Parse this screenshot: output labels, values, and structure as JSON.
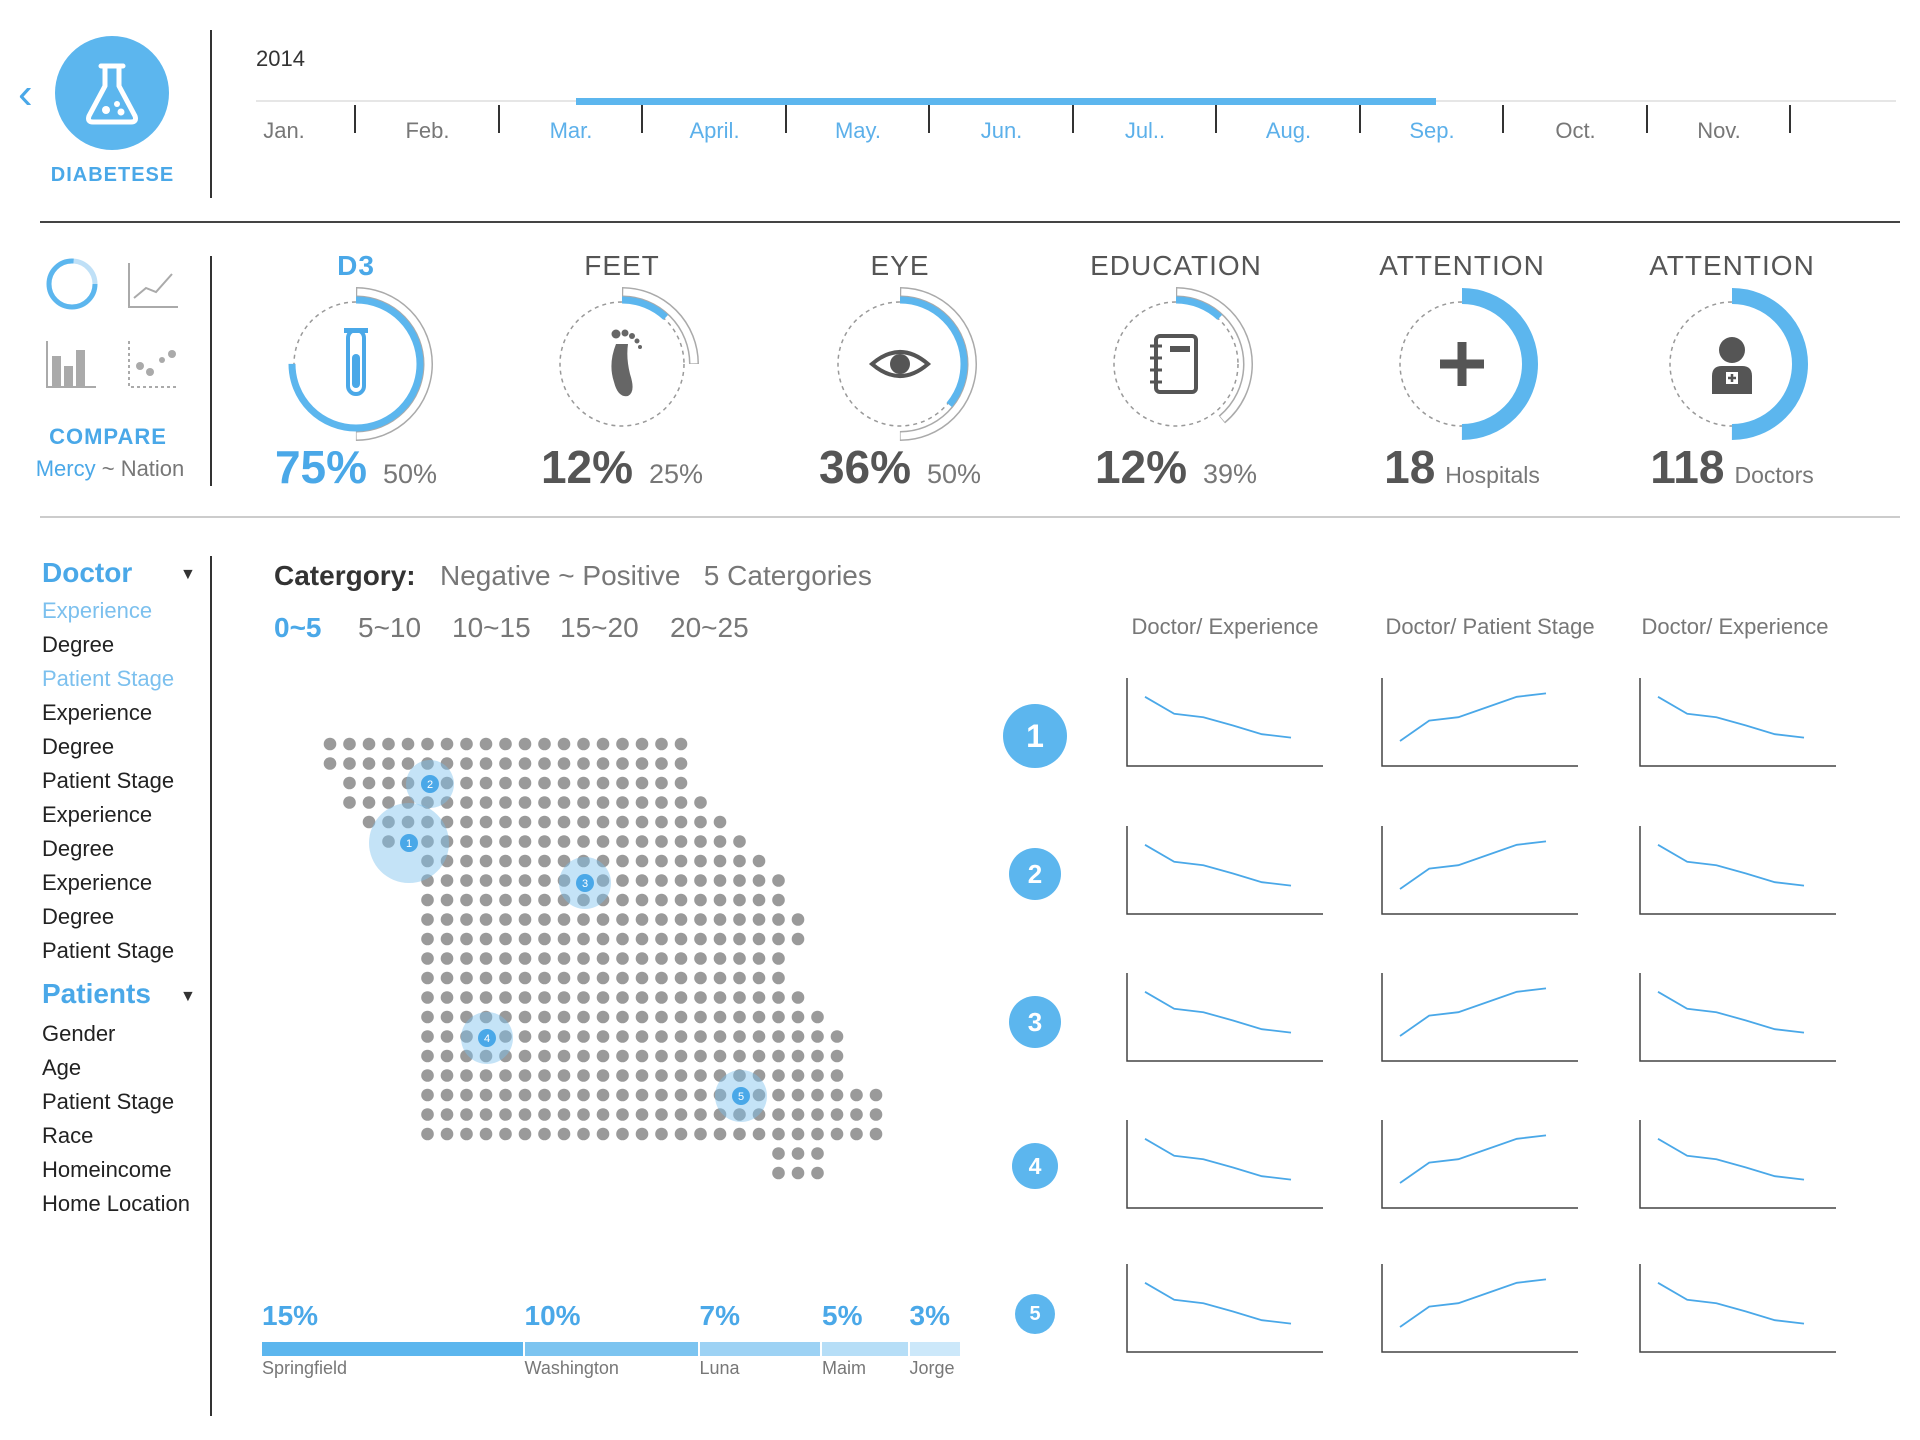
{
  "header": {
    "back_icon": "chevron-left-icon",
    "logo_icon": "flask-icon",
    "app_title": "DIABETESE",
    "year": "2014",
    "months": [
      "Jan.",
      "Feb.",
      "Mar.",
      "April.",
      "May.",
      "Jun.",
      "Jul..",
      "Aug.",
      "Sep.",
      "Oct.",
      "Nov."
    ],
    "active_months": [
      "Mar.",
      "April.",
      "May.",
      "Jun.",
      "Jul..",
      "Aug.",
      "Sep."
    ]
  },
  "compare": {
    "chart_type_icons": [
      "donut-icon",
      "line-chart-icon",
      "bar-chart-icon",
      "scatter-icon"
    ],
    "label": "COMPARE",
    "sub_a": "Mercy",
    "sub_sep": " ~ ",
    "sub_b": "Nation"
  },
  "kpis": [
    {
      "title": "D3",
      "icon": "test-tube-icon",
      "value": "75%",
      "compare": "50%",
      "active": true,
      "progress": 0.75,
      "nation": 0.5
    },
    {
      "title": "FEET",
      "icon": "foot-icon",
      "value": "12%",
      "compare": "25%",
      "active": false,
      "progress": 0.12,
      "nation": 0.25
    },
    {
      "title": "EYE",
      "icon": "eye-icon",
      "value": "36%",
      "compare": "50%",
      "active": false,
      "progress": 0.36,
      "nation": 0.5
    },
    {
      "title": "EDUCATION",
      "icon": "notebook-icon",
      "value": "12%",
      "compare": "39%",
      "active": false,
      "progress": 0.12,
      "nation": 0.39
    },
    {
      "title": "ATTENTION",
      "icon": "plus-icon",
      "value": "18",
      "compare": "Hospitals",
      "active": false,
      "progress": 0.5,
      "nation": null
    },
    {
      "title": "ATTENTION",
      "icon": "doctor-icon",
      "value": "118",
      "compare": "Doctors",
      "active": false,
      "progress": 0.5,
      "nation": null
    }
  ],
  "sidebar": {
    "doctor_head": "Doctor",
    "doctor_items": [
      {
        "label": "Experience",
        "hl": true
      },
      {
        "label": "Degree",
        "hl": false
      },
      {
        "label": "Patient Stage",
        "hl": true
      },
      {
        "label": "Experience",
        "hl": false
      },
      {
        "label": "Degree",
        "hl": false
      },
      {
        "label": "Patient Stage",
        "hl": false
      },
      {
        "label": "Experience",
        "hl": false
      },
      {
        "label": "Degree",
        "hl": false
      },
      {
        "label": "Experience",
        "hl": false
      },
      {
        "label": "Degree",
        "hl": false
      },
      {
        "label": "Patient Stage",
        "hl": false
      }
    ],
    "patients_head": "Patients",
    "patients_items": [
      "Gender",
      "Age",
      "Patient Stage",
      "Race",
      "Homeincome",
      "Home Location"
    ]
  },
  "category": {
    "label": "Catergory:",
    "sub": "Negative ~ Positive   5 Catergories",
    "ranges": [
      "0~5",
      "5~10",
      "10~15",
      "15~20",
      "20~25"
    ],
    "active_range": "0~5"
  },
  "map": {
    "markers": [
      "1",
      "2",
      "3",
      "4",
      "5"
    ]
  },
  "regions": [
    {
      "pct": "15%",
      "name": "Springfield",
      "value": 15
    },
    {
      "pct": "10%",
      "name": "Washington",
      "value": 10
    },
    {
      "pct": "7%",
      "name": "Luna",
      "value": 7
    },
    {
      "pct": "5%",
      "name": "Maim",
      "value": 5
    },
    {
      "pct": "3%",
      "name": "Jorge",
      "value": 3
    }
  ],
  "chart_data": {
    "type": "line",
    "columns": [
      "Doctor/ Experience",
      "Doctor/ Patient Stage",
      "Doctor/ Experience"
    ],
    "rows": [
      "1",
      "2",
      "3",
      "4",
      "5"
    ],
    "series_shapes": {
      "Doctor/ Experience": [
        0.9,
        0.65,
        0.6,
        0.48,
        0.35,
        0.3
      ],
      "Doctor/ Patient Stage": [
        0.25,
        0.55,
        0.6,
        0.75,
        0.9,
        0.95
      ]
    }
  },
  "colors": {
    "accent": "#4aa8e8",
    "accent_light": "#7cc0ee",
    "dot": "#9a9a9a"
  }
}
